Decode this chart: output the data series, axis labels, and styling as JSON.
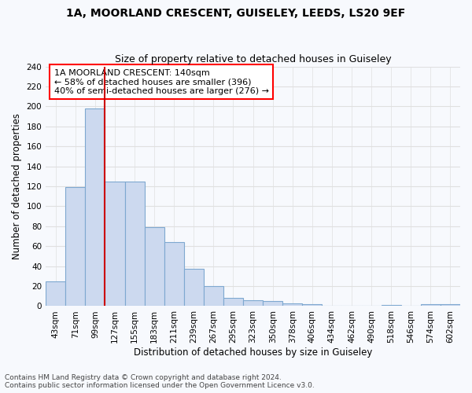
{
  "title_line1": "1A, MOORLAND CRESCENT, GUISELEY, LEEDS, LS20 9EF",
  "title_line2": "Size of property relative to detached houses in Guiseley",
  "xlabel": "Distribution of detached houses by size in Guiseley",
  "ylabel": "Number of detached properties",
  "bar_color": "#ccd9ef",
  "bar_edge_color": "#7ea8d0",
  "bins": [
    "43sqm",
    "71sqm",
    "99sqm",
    "127sqm",
    "155sqm",
    "183sqm",
    "211sqm",
    "239sqm",
    "267sqm",
    "295sqm",
    "323sqm",
    "350sqm",
    "378sqm",
    "406sqm",
    "434sqm",
    "462sqm",
    "490sqm",
    "518sqm",
    "546sqm",
    "574sqm",
    "602sqm"
  ],
  "values": [
    25,
    119,
    198,
    125,
    125,
    79,
    64,
    37,
    20,
    8,
    6,
    5,
    3,
    2,
    0,
    0,
    0,
    1,
    0,
    2,
    2
  ],
  "vline_x": 2.5,
  "vline_color": "#cc0000",
  "annotation_text": "1A MOORLAND CRESCENT: 140sqm\n← 58% of detached houses are smaller (396)\n40% of semi-detached houses are larger (276) →",
  "ylim": [
    0,
    240
  ],
  "yticks": [
    0,
    20,
    40,
    60,
    80,
    100,
    120,
    140,
    160,
    180,
    200,
    220,
    240
  ],
  "footnote": "Contains HM Land Registry data © Crown copyright and database right 2024.\nContains public sector information licensed under the Open Government Licence v3.0.",
  "background_color": "#f7f9fd",
  "grid_color": "#e0e0e0",
  "title_fontsize": 10,
  "subtitle_fontsize": 9,
  "axis_label_fontsize": 8.5,
  "tick_fontsize": 7.5,
  "annotation_fontsize": 8,
  "footnote_fontsize": 6.5
}
